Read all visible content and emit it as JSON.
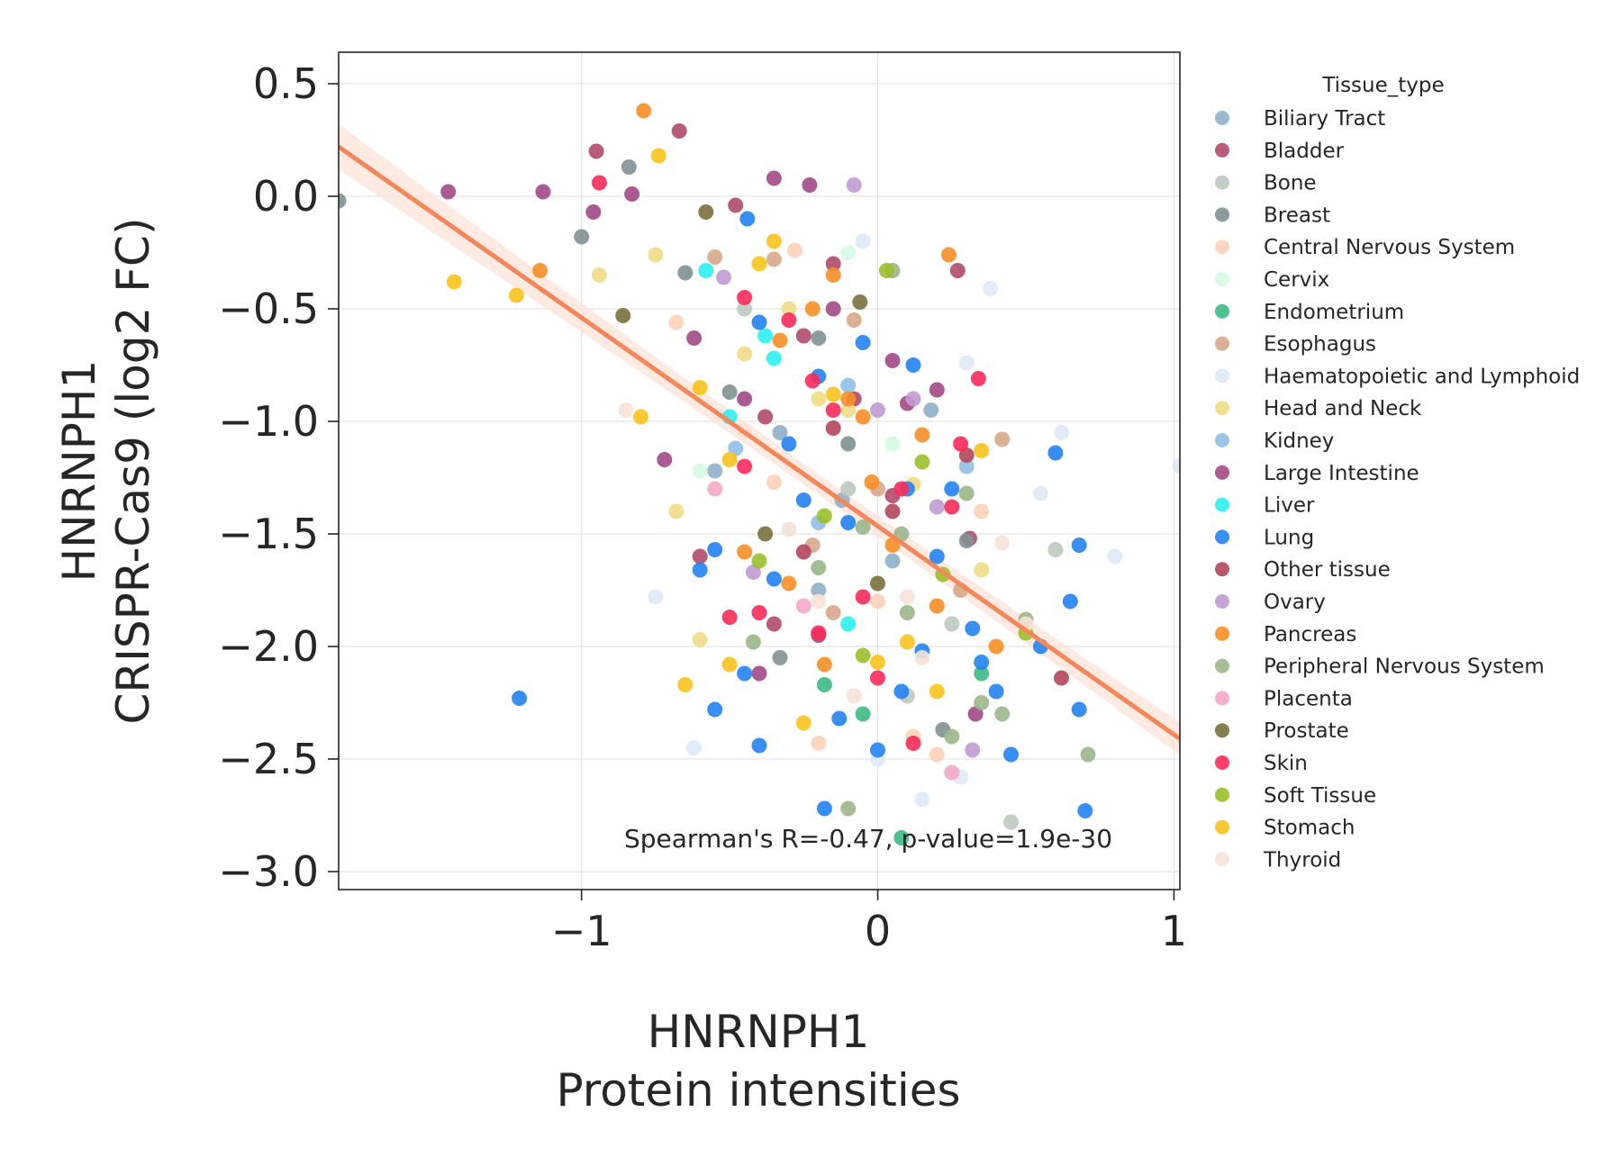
{
  "chart_data": {
    "type": "scatter",
    "xlabel_lines": [
      "HNRNPH1",
      "Protein intensities"
    ],
    "ylabel_lines": [
      "HNRNPH1",
      "CRISPR-Cas9 (log2 FC)"
    ],
    "xlim": [
      -1.82,
      1.02
    ],
    "ylim": [
      -3.08,
      0.64
    ],
    "x_ticks": [
      -1,
      0,
      1
    ],
    "x_tick_labels": [
      "−1",
      "0",
      "1"
    ],
    "y_ticks": [
      0.5,
      0.0,
      -0.5,
      -1.0,
      -1.5,
      -2.0,
      -2.5,
      -3.0
    ],
    "y_tick_labels": [
      "0.5",
      "0.0",
      "−0.5",
      "−1.0",
      "−1.5",
      "−2.0",
      "−2.5",
      "−3.0"
    ],
    "grid": true,
    "annotation": "Spearman's R=-0.47, p-value=1.9e-30",
    "regression": {
      "x": [
        -1.82,
        1.02
      ],
      "y": [
        0.22,
        -2.41
      ],
      "color": "#f4875a",
      "band_color": "#fde3d6"
    },
    "legend": {
      "title": "Tissue_type",
      "placement": "right, outside",
      "entries": [
        {
          "name": "Biliary Tract",
          "color": "#8fb0c8"
        },
        {
          "name": "Bladder",
          "color": "#b04a6a"
        },
        {
          "name": "Bone",
          "color": "#bdc9be"
        },
        {
          "name": "Breast",
          "color": "#7f9090"
        },
        {
          "name": "Central Nervous System",
          "color": "#fdd2b8"
        },
        {
          "name": "Cervix",
          "color": "#d6fae6"
        },
        {
          "name": "Endometrium",
          "color": "#3cba84"
        },
        {
          "name": "Esophagus",
          "color": "#d6a88a"
        },
        {
          "name": "Haematopoietic and Lymphoid",
          "color": "#dde9f6"
        },
        {
          "name": "Head and Neck",
          "color": "#eedb84"
        },
        {
          "name": "Kidney",
          "color": "#8fbfe6"
        },
        {
          "name": "Large Intestine",
          "color": "#a24886"
        },
        {
          "name": "Liver",
          "color": "#2cf0f0"
        },
        {
          "name": "Lung",
          "color": "#2382f2"
        },
        {
          "name": "Other tissue",
          "color": "#b1475a"
        },
        {
          "name": "Ovary",
          "color": "#c19ad2"
        },
        {
          "name": "Pancreas",
          "color": "#f78e26"
        },
        {
          "name": "Peripheral Nervous System",
          "color": "#9ab68a"
        },
        {
          "name": "Placenta",
          "color": "#f4a8c6"
        },
        {
          "name": "Prostate",
          "color": "#7a703c"
        },
        {
          "name": "Skin",
          "color": "#f92b5a"
        },
        {
          "name": "Soft Tissue",
          "color": "#9ac02a"
        },
        {
          "name": "Stomach",
          "color": "#f9c21c"
        },
        {
          "name": "Thyroid",
          "color": "#f6e2d8"
        }
      ]
    },
    "series": [
      {
        "name": "Biliary Tract",
        "points": [
          [
            -0.33,
            -1.05
          ],
          [
            -0.12,
            -1.35
          ],
          [
            0.05,
            -1.62
          ],
          [
            -0.55,
            -1.22
          ],
          [
            0.18,
            -0.95
          ],
          [
            -0.2,
            -1.75
          ]
        ]
      },
      {
        "name": "Bladder",
        "points": [
          [
            -0.95,
            0.2
          ],
          [
            -0.67,
            0.29
          ],
          [
            -0.48,
            -0.04
          ],
          [
            -0.25,
            -0.62
          ],
          [
            -0.08,
            -0.9
          ],
          [
            0.31,
            -1.52
          ],
          [
            -0.38,
            -0.98
          ],
          [
            0.05,
            -1.33
          ],
          [
            -0.15,
            -0.3
          ],
          [
            0.27,
            -0.33
          ],
          [
            -0.6,
            -1.6
          ],
          [
            -0.35,
            -1.9
          ]
        ]
      },
      {
        "name": "Bone",
        "points": [
          [
            -0.45,
            -0.5
          ],
          [
            0.1,
            -2.22
          ],
          [
            0.45,
            -2.78
          ],
          [
            0.6,
            -1.57
          ],
          [
            -0.1,
            -1.3
          ],
          [
            0.25,
            -1.9
          ]
        ]
      },
      {
        "name": "Breast",
        "points": [
          [
            -1.82,
            -0.02
          ],
          [
            -0.84,
            0.13
          ],
          [
            -1.0,
            -0.18
          ],
          [
            -0.65,
            -0.34
          ],
          [
            -0.2,
            -0.63
          ],
          [
            -0.5,
            -0.87
          ],
          [
            -0.1,
            -1.1
          ],
          [
            0.22,
            -2.37
          ],
          [
            -0.33,
            -2.05
          ],
          [
            0.3,
            -1.53
          ]
        ]
      },
      {
        "name": "Central Nervous System",
        "points": [
          [
            -0.28,
            -0.24
          ],
          [
            -0.68,
            -0.56
          ],
          [
            -0.2,
            -2.43
          ],
          [
            -0.35,
            -1.27
          ],
          [
            0.12,
            -2.4
          ],
          [
            0.35,
            -1.4
          ],
          [
            0.0,
            -1.8
          ],
          [
            0.2,
            -2.48
          ]
        ]
      },
      {
        "name": "Cervix",
        "points": [
          [
            -0.1,
            -0.25
          ],
          [
            -0.6,
            -1.22
          ],
          [
            0.05,
            -1.1
          ],
          [
            -0.3,
            -1.48
          ]
        ]
      },
      {
        "name": "Endometrium",
        "points": [
          [
            0.08,
            -2.85
          ],
          [
            -0.05,
            -2.3
          ],
          [
            0.35,
            -2.12
          ],
          [
            -0.18,
            -2.17
          ]
        ]
      },
      {
        "name": "Esophagus",
        "points": [
          [
            -0.55,
            -0.27
          ],
          [
            -0.35,
            -0.28
          ],
          [
            -0.08,
            -0.55
          ],
          [
            0.42,
            -1.08
          ],
          [
            -0.22,
            -1.55
          ],
          [
            0.0,
            -1.3
          ],
          [
            -0.15,
            -1.85
          ],
          [
            0.28,
            -1.75
          ]
        ]
      },
      {
        "name": "Haematopoietic and Lymphoid",
        "points": [
          [
            -0.05,
            -0.2
          ],
          [
            0.38,
            -0.41
          ],
          [
            0.62,
            -1.05
          ],
          [
            0.8,
            -1.6
          ],
          [
            0.55,
            -1.32
          ],
          [
            1.02,
            -1.2
          ],
          [
            -0.62,
            -2.45
          ],
          [
            -0.75,
            -1.78
          ],
          [
            0.15,
            -2.68
          ],
          [
            0.0,
            -2.5
          ],
          [
            0.3,
            -0.74
          ],
          [
            0.28,
            -2.58
          ]
        ]
      },
      {
        "name": "Head and Neck",
        "points": [
          [
            -0.75,
            -0.26
          ],
          [
            -0.94,
            -0.35
          ],
          [
            -0.68,
            -1.4
          ],
          [
            -0.45,
            -0.7
          ],
          [
            -0.2,
            -0.9
          ],
          [
            0.12,
            -1.28
          ],
          [
            -0.3,
            -0.5
          ],
          [
            0.35,
            -1.66
          ],
          [
            -0.6,
            -1.97
          ],
          [
            -0.1,
            -0.95
          ]
        ]
      },
      {
        "name": "Kidney",
        "points": [
          [
            -0.48,
            -1.12
          ],
          [
            -0.1,
            -0.84
          ],
          [
            0.3,
            -1.2
          ],
          [
            -0.2,
            -1.45
          ]
        ]
      },
      {
        "name": "Large Intestine",
        "points": [
          [
            -1.45,
            0.02
          ],
          [
            -1.13,
            0.02
          ],
          [
            -0.96,
            -0.07
          ],
          [
            -0.83,
            0.01
          ],
          [
            -0.35,
            0.08
          ],
          [
            -0.23,
            0.05
          ],
          [
            -0.72,
            -1.17
          ],
          [
            -0.62,
            -0.63
          ],
          [
            -0.45,
            -0.9
          ],
          [
            -0.15,
            -0.5
          ],
          [
            0.05,
            -0.73
          ],
          [
            -0.4,
            -2.12
          ],
          [
            0.33,
            -2.3
          ],
          [
            0.2,
            -0.86
          ],
          [
            -0.2,
            -1.95
          ],
          [
            0.1,
            -0.92
          ]
        ]
      },
      {
        "name": "Liver",
        "points": [
          [
            -0.58,
            -0.33
          ],
          [
            -0.38,
            -0.62
          ],
          [
            -0.5,
            -0.98
          ],
          [
            -0.1,
            -1.9
          ],
          [
            -0.35,
            -0.72
          ]
        ]
      },
      {
        "name": "Lung",
        "points": [
          [
            -1.21,
            -2.23
          ],
          [
            -0.44,
            -0.1
          ],
          [
            -0.55,
            -1.57
          ],
          [
            -0.6,
            -1.66
          ],
          [
            -0.4,
            -0.56
          ],
          [
            -0.2,
            -0.8
          ],
          [
            -0.05,
            -0.65
          ],
          [
            0.12,
            -0.75
          ],
          [
            0.6,
            -1.14
          ],
          [
            0.65,
            -1.8
          ],
          [
            0.68,
            -2.28
          ],
          [
            0.7,
            -2.73
          ],
          [
            0.45,
            -2.48
          ],
          [
            0.32,
            -1.92
          ],
          [
            0.1,
            -1.3
          ],
          [
            -0.3,
            -1.1
          ],
          [
            -0.1,
            -1.45
          ],
          [
            -0.45,
            -2.12
          ],
          [
            -0.55,
            -2.28
          ],
          [
            -0.4,
            -2.44
          ],
          [
            -0.18,
            -2.72
          ],
          [
            -0.13,
            -2.32
          ],
          [
            0.0,
            -2.46
          ],
          [
            0.08,
            -2.2
          ],
          [
            0.15,
            -2.02
          ],
          [
            0.35,
            -2.07
          ],
          [
            0.4,
            -2.2
          ],
          [
            0.25,
            -1.3
          ],
          [
            0.2,
            -1.6
          ],
          [
            -0.25,
            -1.35
          ],
          [
            -0.35,
            -1.7
          ],
          [
            0.55,
            -2.0
          ],
          [
            0.68,
            -1.55
          ]
        ]
      },
      {
        "name": "Other tissue",
        "points": [
          [
            -0.15,
            -1.03
          ],
          [
            0.05,
            -1.4
          ],
          [
            0.3,
            -1.15
          ],
          [
            0.62,
            -2.14
          ],
          [
            -0.25,
            -1.58
          ]
        ]
      },
      {
        "name": "Ovary",
        "points": [
          [
            -0.08,
            0.05
          ],
          [
            -0.52,
            -0.36
          ],
          [
            0.2,
            -1.38
          ],
          [
            0.32,
            -2.46
          ],
          [
            -0.42,
            -1.67
          ],
          [
            0.0,
            -0.95
          ],
          [
            0.12,
            -0.9
          ]
        ]
      },
      {
        "name": "Pancreas",
        "points": [
          [
            -0.79,
            0.38
          ],
          [
            -1.14,
            -0.33
          ],
          [
            0.24,
            -0.26
          ],
          [
            -0.33,
            -0.64
          ],
          [
            -0.15,
            -0.35
          ],
          [
            -0.05,
            -0.98
          ],
          [
            0.15,
            -1.06
          ],
          [
            0.4,
            -2.0
          ],
          [
            -0.02,
            -1.27
          ],
          [
            -0.45,
            -1.58
          ],
          [
            -0.3,
            -1.72
          ],
          [
            -0.18,
            -2.08
          ],
          [
            0.2,
            -1.82
          ],
          [
            -0.22,
            -0.5
          ],
          [
            -0.1,
            -0.9
          ],
          [
            0.05,
            -1.55
          ]
        ]
      },
      {
        "name": "Peripheral Nervous System",
        "points": [
          [
            0.05,
            -0.33
          ],
          [
            0.3,
            -1.32
          ],
          [
            0.42,
            -2.3
          ],
          [
            0.5,
            -1.88
          ],
          [
            0.71,
            -2.48
          ],
          [
            0.25,
            -2.4
          ],
          [
            -0.1,
            -2.72
          ],
          [
            -0.42,
            -1.98
          ],
          [
            -0.2,
            -1.65
          ],
          [
            0.08,
            -1.5
          ],
          [
            0.35,
            -2.25
          ],
          [
            0.1,
            -1.85
          ],
          [
            -0.05,
            -1.47
          ]
        ]
      },
      {
        "name": "Placenta",
        "points": [
          [
            -0.25,
            -1.82
          ],
          [
            0.25,
            -2.56
          ],
          [
            -0.55,
            -1.3
          ]
        ]
      },
      {
        "name": "Prostate",
        "points": [
          [
            -0.58,
            -0.07
          ],
          [
            -0.86,
            -0.53
          ],
          [
            -0.06,
            -0.47
          ],
          [
            0.0,
            -1.72
          ],
          [
            -0.38,
            -1.5
          ]
        ]
      },
      {
        "name": "Skin",
        "points": [
          [
            -0.94,
            0.06
          ],
          [
            -0.45,
            -0.45
          ],
          [
            -0.3,
            -0.55
          ],
          [
            -0.22,
            -0.82
          ],
          [
            0.34,
            -0.81
          ],
          [
            -0.15,
            -0.95
          ],
          [
            0.08,
            -1.3
          ],
          [
            -0.45,
            -1.2
          ],
          [
            0.25,
            -1.38
          ],
          [
            -0.05,
            -1.78
          ],
          [
            0.12,
            -2.43
          ],
          [
            -0.2,
            -1.94
          ],
          [
            -0.4,
            -1.85
          ],
          [
            -0.5,
            -1.87
          ],
          [
            0.0,
            -2.14
          ],
          [
            0.28,
            -1.1
          ]
        ]
      },
      {
        "name": "Soft Tissue",
        "points": [
          [
            0.03,
            -0.33
          ],
          [
            0.15,
            -1.18
          ],
          [
            0.5,
            -1.94
          ],
          [
            -0.4,
            -1.62
          ],
          [
            -0.18,
            -1.42
          ],
          [
            0.22,
            -1.68
          ],
          [
            -0.05,
            -2.04
          ]
        ]
      },
      {
        "name": "Stomach",
        "points": [
          [
            -1.43,
            -0.38
          ],
          [
            -1.22,
            -0.44
          ],
          [
            -0.74,
            0.18
          ],
          [
            -0.8,
            -0.98
          ],
          [
            -0.6,
            -0.85
          ],
          [
            -0.5,
            -1.17
          ],
          [
            -0.35,
            -0.2
          ],
          [
            -0.4,
            -0.3
          ],
          [
            -0.25,
            -2.34
          ],
          [
            0.35,
            -1.13
          ],
          [
            0.1,
            -1.98
          ],
          [
            -0.65,
            -2.17
          ],
          [
            -0.5,
            -2.08
          ],
          [
            0.0,
            -2.07
          ],
          [
            0.2,
            -2.2
          ],
          [
            -0.15,
            -0.88
          ]
        ]
      },
      {
        "name": "Thyroid",
        "points": [
          [
            -0.85,
            -0.95
          ],
          [
            -0.2,
            -1.8
          ],
          [
            0.1,
            -1.78
          ],
          [
            0.42,
            -1.54
          ],
          [
            -0.3,
            -1.48
          ],
          [
            -0.08,
            -2.22
          ],
          [
            0.5,
            -1.9
          ],
          [
            -0.45,
            -1.04
          ],
          [
            0.15,
            -2.05
          ]
        ]
      }
    ]
  }
}
